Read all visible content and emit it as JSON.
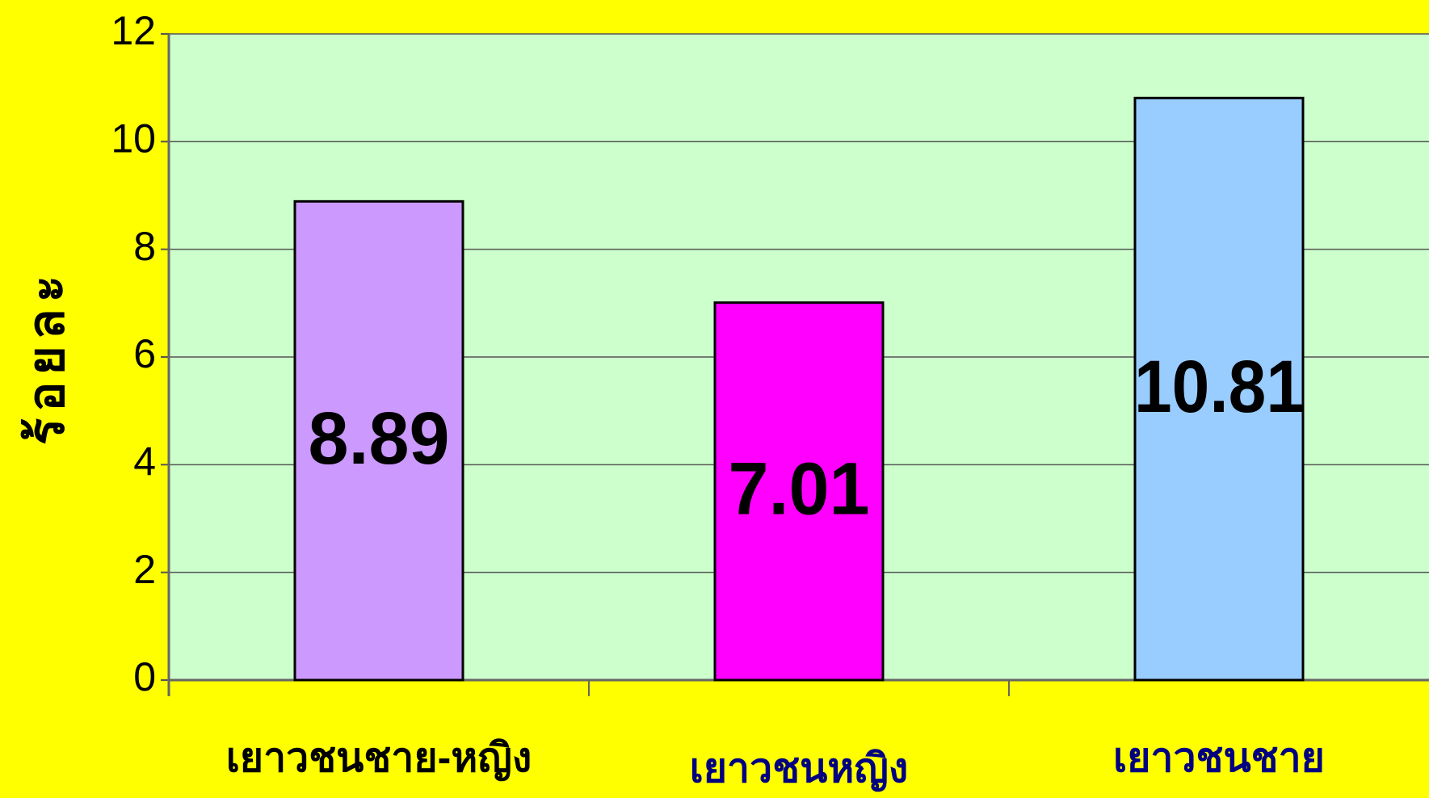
{
  "chart_data": {
    "type": "bar",
    "y_label": "ร้อยละ",
    "categories": [
      "เยาวชนชาย-หญิง",
      "เยาวชนหญิง",
      "เยาวชนชาย"
    ],
    "values": [
      8.89,
      7.01,
      10.81
    ],
    "colors": [
      "#cc99ff",
      "#ff00ff",
      "#99ccff"
    ],
    "ylim": [
      0,
      12
    ],
    "yticks": [
      0,
      2,
      4,
      6,
      8,
      10,
      12
    ],
    "grid": true
  }
}
